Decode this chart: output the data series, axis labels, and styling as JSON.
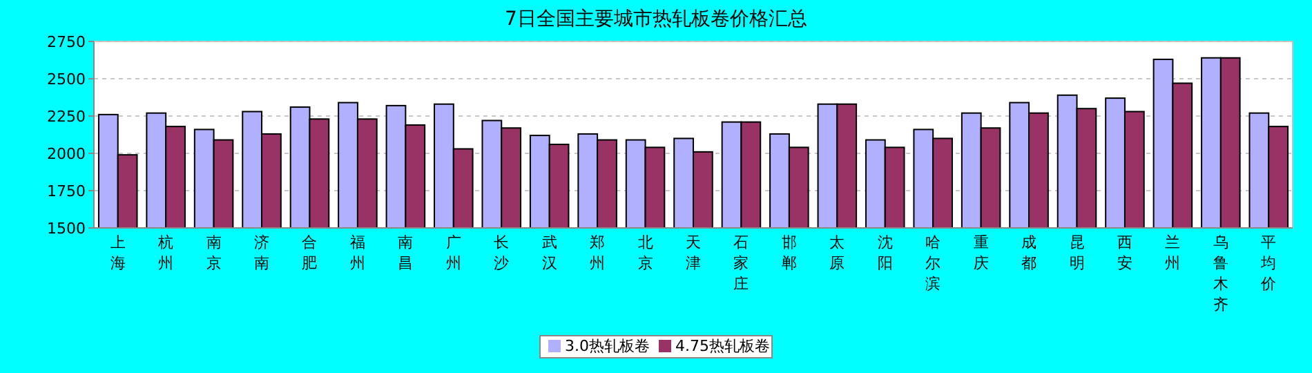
{
  "chart_data": {
    "type": "bar",
    "title": "7日全国主要城市热轧板卷价格汇总",
    "categories": [
      "上海",
      "杭州",
      "南京",
      "济南",
      "合肥",
      "福州",
      "南昌",
      "广州",
      "长沙",
      "武汉",
      "郑州",
      "北京",
      "天津",
      "石家庄",
      "邯郸",
      "太原",
      "沈阳",
      "哈尔滨",
      "重庆",
      "成都",
      "昆明",
      "西安",
      "兰州",
      "乌鲁木齐",
      "平均价"
    ],
    "series": [
      {
        "name": "3.0热轧板卷",
        "color": "#b0b0ff",
        "values": [
          2260,
          2270,
          2160,
          2280,
          2310,
          2340,
          2320,
          2330,
          2220,
          2120,
          2130,
          2090,
          2100,
          2210,
          2130,
          2330,
          2090,
          2160,
          2270,
          2340,
          2390,
          2370,
          2630,
          2640,
          2270
        ]
      },
      {
        "name": "4.75热轧板卷",
        "color": "#993366",
        "values": [
          1990,
          2180,
          2090,
          2130,
          2230,
          2230,
          2190,
          2030,
          2170,
          2060,
          2090,
          2040,
          2010,
          2210,
          2040,
          2330,
          2040,
          2100,
          2170,
          2270,
          2300,
          2280,
          2470,
          2640,
          2180
        ]
      }
    ],
    "ylim": [
      1500,
      2750
    ],
    "yticks": [
      1500,
      1750,
      2000,
      2250,
      2500,
      2750
    ],
    "grid": "y",
    "legend": "bottom"
  }
}
